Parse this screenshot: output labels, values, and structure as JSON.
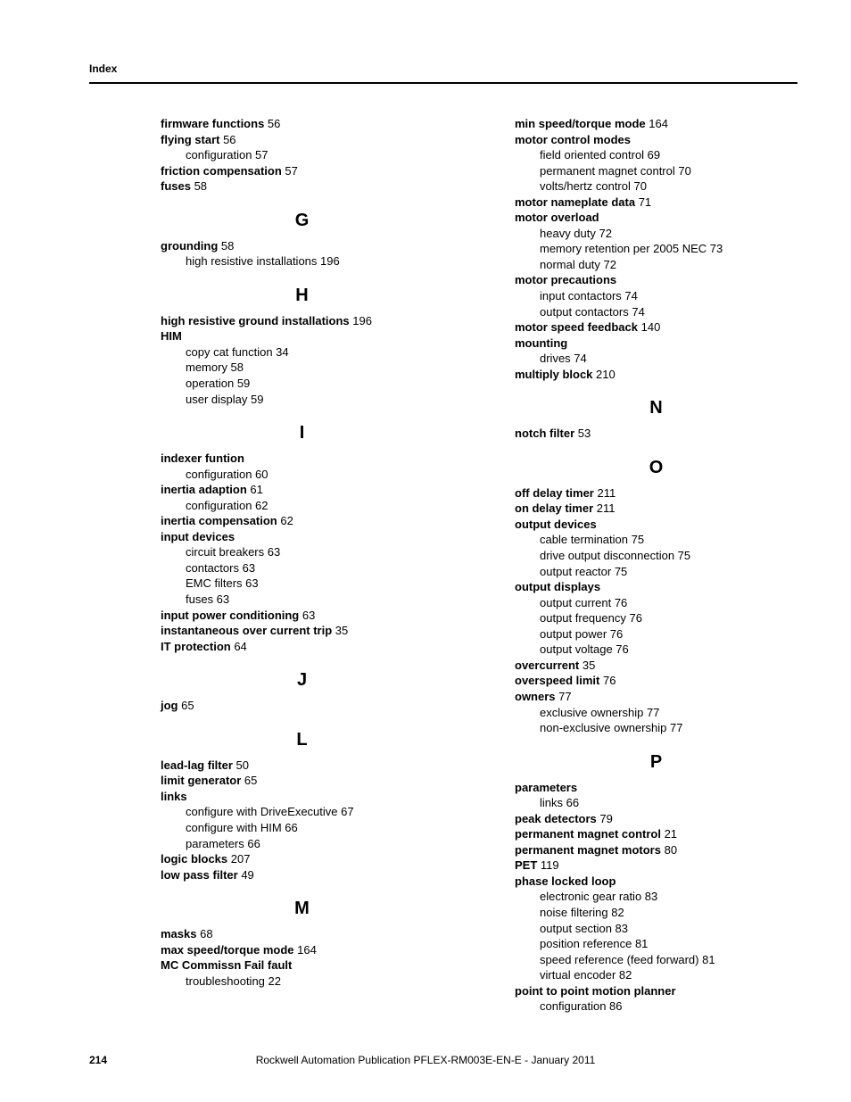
{
  "header": {
    "title": "Index"
  },
  "footer": {
    "page_number": "214",
    "publication": "Rockwell Automation Publication PFLEX-RM003E-EN-E - January 2011"
  },
  "left_col": [
    {
      "type": "entry",
      "term": "firmware functions",
      "page": "56"
    },
    {
      "type": "entry",
      "term": "flying start",
      "page": "56"
    },
    {
      "type": "sub",
      "text": "configuration 57"
    },
    {
      "type": "entry",
      "term": "friction compensation",
      "page": "57"
    },
    {
      "type": "entry",
      "term": "fuses",
      "page": "58"
    },
    {
      "type": "letter",
      "text": "G"
    },
    {
      "type": "entry",
      "term": "grounding",
      "page": "58"
    },
    {
      "type": "sub",
      "text": "high resistive installations 196"
    },
    {
      "type": "letter",
      "text": "H"
    },
    {
      "type": "entry",
      "term": "high resistive ground installations",
      "page": "196"
    },
    {
      "type": "entry",
      "term": "HIM",
      "page": ""
    },
    {
      "type": "sub",
      "text": "copy cat function 34"
    },
    {
      "type": "sub",
      "text": "memory 58"
    },
    {
      "type": "sub",
      "text": "operation 59"
    },
    {
      "type": "sub",
      "text": "user display 59"
    },
    {
      "type": "letter",
      "text": "I"
    },
    {
      "type": "entry",
      "term": "indexer funtion",
      "page": ""
    },
    {
      "type": "sub",
      "text": "configuration 60"
    },
    {
      "type": "entry",
      "term": "inertia adaption",
      "page": "61"
    },
    {
      "type": "sub",
      "text": "configuration 62"
    },
    {
      "type": "entry",
      "term": "inertia compensation",
      "page": "62"
    },
    {
      "type": "entry",
      "term": "input devices",
      "page": ""
    },
    {
      "type": "sub",
      "text": "circuit breakers 63"
    },
    {
      "type": "sub",
      "text": "contactors 63"
    },
    {
      "type": "sub",
      "text": "EMC filters 63"
    },
    {
      "type": "sub",
      "text": "fuses 63"
    },
    {
      "type": "entry",
      "term": "input power conditioning",
      "page": "63"
    },
    {
      "type": "entry",
      "term": "instantaneous over current trip",
      "page": "35"
    },
    {
      "type": "entry",
      "term": "IT protection",
      "page": "64"
    },
    {
      "type": "letter",
      "text": "J"
    },
    {
      "type": "entry",
      "term": "jog",
      "page": "65"
    },
    {
      "type": "letter",
      "text": "L"
    },
    {
      "type": "entry",
      "term": "lead-lag filter",
      "page": "50"
    },
    {
      "type": "entry",
      "term": "limit generator",
      "page": "65"
    },
    {
      "type": "entry",
      "term": "links",
      "page": ""
    },
    {
      "type": "sub",
      "text": "configure with DriveExecutive 67"
    },
    {
      "type": "sub",
      "text": "configure with HIM 66"
    },
    {
      "type": "sub",
      "text": "parameters 66"
    },
    {
      "type": "entry",
      "term": "logic blocks",
      "page": "207"
    },
    {
      "type": "entry",
      "term": "low pass filter",
      "page": "49"
    },
    {
      "type": "letter",
      "text": "M"
    },
    {
      "type": "entry",
      "term": "masks",
      "page": "68"
    },
    {
      "type": "entry",
      "term": "max speed/torque mode",
      "page": "164"
    },
    {
      "type": "entry",
      "term": "MC Commissn Fail fault",
      "page": ""
    },
    {
      "type": "sub",
      "text": "troubleshooting 22"
    }
  ],
  "right_col": [
    {
      "type": "entry",
      "term": "min speed/torque mode",
      "page": "164"
    },
    {
      "type": "entry",
      "term": "motor control modes",
      "page": ""
    },
    {
      "type": "sub",
      "text": "field oriented control 69"
    },
    {
      "type": "sub",
      "text": "permanent magnet control 70"
    },
    {
      "type": "sub",
      "text": "volts/hertz control 70"
    },
    {
      "type": "entry",
      "term": "motor nameplate data",
      "page": "71"
    },
    {
      "type": "entry",
      "term": "motor overload",
      "page": ""
    },
    {
      "type": "sub",
      "text": "heavy duty 72"
    },
    {
      "type": "sub",
      "text": "memory retention per 2005 NEC 73"
    },
    {
      "type": "sub",
      "text": "normal duty 72"
    },
    {
      "type": "entry",
      "term": "motor precautions",
      "page": ""
    },
    {
      "type": "sub",
      "text": "input contactors 74"
    },
    {
      "type": "sub",
      "text": "output contactors 74"
    },
    {
      "type": "entry",
      "term": "motor speed feedback",
      "page": "140"
    },
    {
      "type": "entry",
      "term": "mounting",
      "page": ""
    },
    {
      "type": "sub",
      "text": "drives 74"
    },
    {
      "type": "entry",
      "term": "multiply block",
      "page": "210"
    },
    {
      "type": "letter",
      "text": "N"
    },
    {
      "type": "entry",
      "term": "notch filter",
      "page": "53"
    },
    {
      "type": "letter",
      "text": "O"
    },
    {
      "type": "entry",
      "term": "off delay timer",
      "page": "211"
    },
    {
      "type": "entry",
      "term": "on delay timer",
      "page": "211"
    },
    {
      "type": "entry",
      "term": "output devices",
      "page": ""
    },
    {
      "type": "sub",
      "text": "cable termination 75"
    },
    {
      "type": "sub",
      "text": "drive output disconnection 75"
    },
    {
      "type": "sub",
      "text": "output reactor 75"
    },
    {
      "type": "entry",
      "term": "output displays",
      "page": ""
    },
    {
      "type": "sub",
      "text": "output current 76"
    },
    {
      "type": "sub",
      "text": "output frequency 76"
    },
    {
      "type": "sub",
      "text": "output power 76"
    },
    {
      "type": "sub",
      "text": "output voltage 76"
    },
    {
      "type": "entry",
      "term": "overcurrent",
      "page": "35"
    },
    {
      "type": "entry",
      "term": "overspeed limit",
      "page": "76"
    },
    {
      "type": "entry",
      "term": "owners",
      "page": "77"
    },
    {
      "type": "sub",
      "text": "exclusive ownership 77"
    },
    {
      "type": "sub",
      "text": "non-exclusive ownership 77"
    },
    {
      "type": "letter",
      "text": "P"
    },
    {
      "type": "entry",
      "term": "parameters",
      "page": ""
    },
    {
      "type": "sub",
      "text": "links 66"
    },
    {
      "type": "entry",
      "term": "peak detectors",
      "page": "79"
    },
    {
      "type": "entry",
      "term": "permanent magnet control",
      "page": "21"
    },
    {
      "type": "entry",
      "term": "permanent magnet motors",
      "page": "80"
    },
    {
      "type": "entry",
      "term": "PET",
      "page": "119"
    },
    {
      "type": "entry",
      "term": "phase locked loop",
      "page": ""
    },
    {
      "type": "sub",
      "text": "electronic gear ratio 83"
    },
    {
      "type": "sub",
      "text": "noise filtering 82"
    },
    {
      "type": "sub",
      "text": "output section 83"
    },
    {
      "type": "sub",
      "text": "position reference 81"
    },
    {
      "type": "sub",
      "text": "speed reference (feed forward) 81"
    },
    {
      "type": "sub",
      "text": "virtual encoder 82"
    },
    {
      "type": "entry",
      "term": "point to point motion planner",
      "page": ""
    },
    {
      "type": "sub",
      "text": "configuration 86"
    }
  ]
}
